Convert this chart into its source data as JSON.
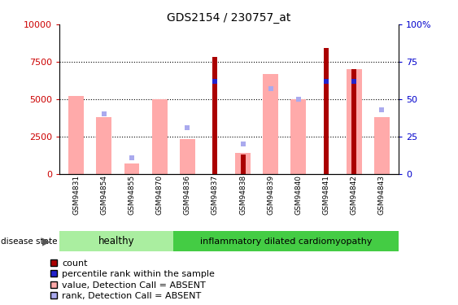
{
  "title": "GDS2154 / 230757_at",
  "samples": [
    "GSM94831",
    "GSM94854",
    "GSM94855",
    "GSM94870",
    "GSM94836",
    "GSM94837",
    "GSM94838",
    "GSM94839",
    "GSM94840",
    "GSM94841",
    "GSM94842",
    "GSM94843"
  ],
  "healthy_count": 4,
  "value_absent": [
    5200,
    3800,
    700,
    5000,
    2300,
    0,
    1400,
    6700,
    5000,
    0,
    7000,
    3800
  ],
  "rank_absent": [
    0,
    4000,
    1100,
    0,
    3100,
    0,
    2000,
    5700,
    5000,
    0,
    0,
    4300
  ],
  "count": [
    0,
    0,
    0,
    0,
    0,
    7800,
    1300,
    0,
    0,
    8400,
    7000,
    0
  ],
  "percentile": [
    0,
    0,
    0,
    0,
    0,
    6200,
    0,
    0,
    0,
    6200,
    6200,
    0
  ],
  "ylim_left": [
    0,
    10000
  ],
  "ylim_right": [
    0,
    100
  ],
  "yticks_left": [
    0,
    2500,
    5000,
    7500,
    10000
  ],
  "yticks_right": [
    0,
    25,
    50,
    75,
    100
  ],
  "count_color": "#aa0000",
  "percentile_color": "#2222cc",
  "value_absent_color": "#ffaaaa",
  "rank_absent_color": "#aaaaee",
  "healthy_color": "#aaeea0",
  "idmc_color": "#44cc44",
  "legend_items": [
    "count",
    "percentile rank within the sample",
    "value, Detection Call = ABSENT",
    "rank, Detection Call = ABSENT"
  ]
}
